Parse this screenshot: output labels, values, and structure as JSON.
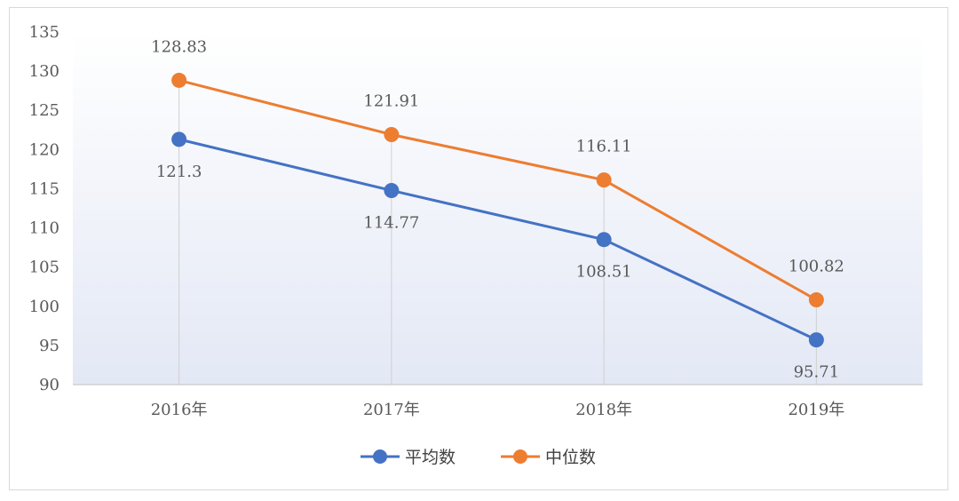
{
  "chart_data": {
    "type": "line",
    "categories": [
      "2016年",
      "2017年",
      "2018年",
      "2019年"
    ],
    "series": [
      {
        "name": "平均数",
        "values": [
          121.3,
          114.77,
          108.51,
          95.71
        ],
        "labels": [
          "121.3",
          "114.77",
          "108.51",
          "95.71"
        ],
        "color": "#4472c4"
      },
      {
        "name": "中位数",
        "values": [
          128.83,
          121.91,
          116.11,
          100.82
        ],
        "labels": [
          "128.83",
          "121.91",
          "116.11",
          "100.82"
        ],
        "color": "#ed7d31"
      }
    ],
    "ylim": [
      90,
      135
    ],
    "yticks": [
      "90",
      "95",
      "100",
      "105",
      "110",
      "115",
      "120",
      "125",
      "130",
      "135"
    ],
    "grid": "vertical drop lines at categories",
    "legend": "bottom-center",
    "background_gradient": [
      "#ffffff",
      "#e3e8f5"
    ]
  }
}
